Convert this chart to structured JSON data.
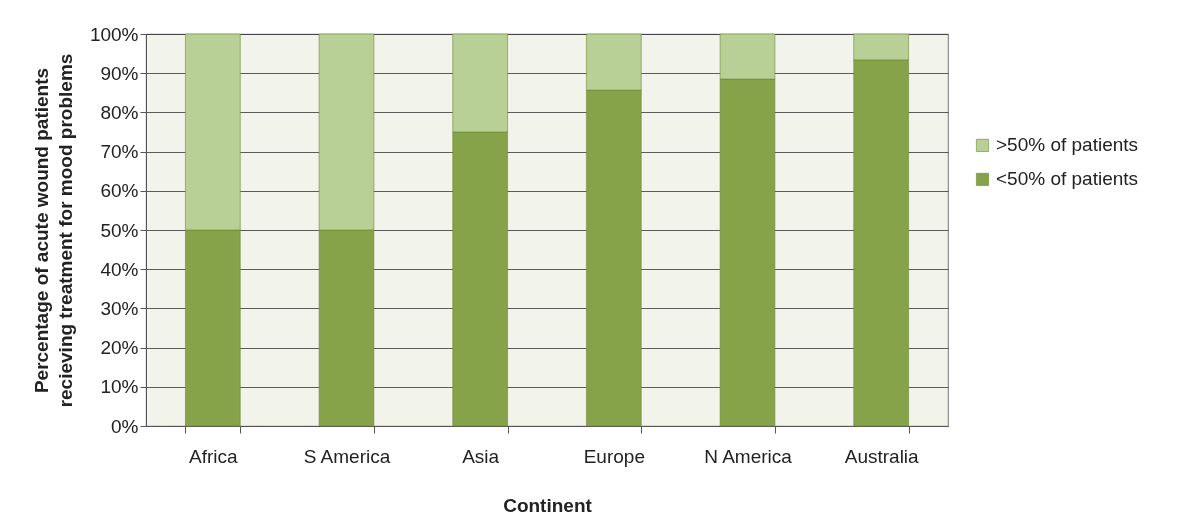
{
  "chart_data": {
    "type": "bar",
    "stacked": true,
    "xlabel": "Continent",
    "ylabel": "Percentage of acute wound patients\nrecieving treatment for mood problems",
    "categories": [
      "Africa",
      "S America",
      "Asia",
      "Europe",
      "N America",
      "Australia"
    ],
    "series": [
      {
        "name": "<50% of patients",
        "color": "#86a34a",
        "values": [
          50,
          50,
          75,
          85.7,
          88.5,
          93.4
        ]
      },
      {
        "name": ">50% of patients",
        "color": "#b8cf96",
        "values": [
          50,
          50,
          25,
          14.3,
          11.5,
          6.6
        ]
      }
    ],
    "ylim": [
      0,
      100
    ],
    "yticks": [
      {
        "value": 0,
        "label": "0%"
      },
      {
        "value": 10,
        "label": "10%"
      },
      {
        "value": 20,
        "label": "20%"
      },
      {
        "value": 30,
        "label": "30%"
      },
      {
        "value": 40,
        "label": "40%"
      },
      {
        "value": 50,
        "label": "50%"
      },
      {
        "value": 60,
        "label": "60%"
      },
      {
        "value": 70,
        "label": "70%"
      },
      {
        "value": 80,
        "label": "80%"
      },
      {
        "value": 90,
        "label": "90%"
      },
      {
        "value": 100,
        "label": "100%"
      }
    ],
    "grid": "y",
    "legend": "right"
  }
}
